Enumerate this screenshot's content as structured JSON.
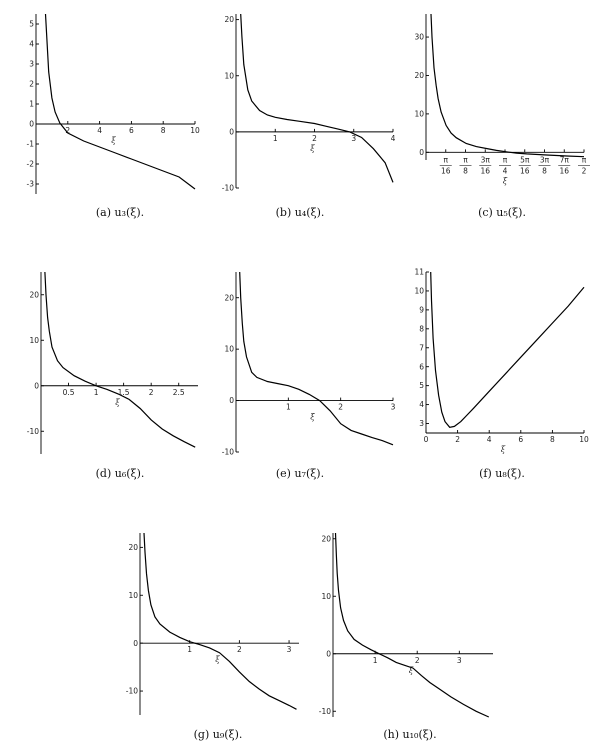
{
  "chart_data": [
    {
      "id": "a",
      "type": "line",
      "caption": "(a)  u₃(ξ).",
      "xlabel": "ξ",
      "ylabel": "",
      "xlim": [
        0,
        10
      ],
      "ylim": [
        -3.5,
        5.5
      ],
      "xticks": [
        {
          "v": 2,
          "l": "2"
        },
        {
          "v": 4,
          "l": "4"
        },
        {
          "v": 6,
          "l": "6"
        },
        {
          "v": 8,
          "l": "8"
        },
        {
          "v": 10,
          "l": "10"
        }
      ],
      "yticks": [
        {
          "v": -3,
          "l": "-3"
        },
        {
          "v": -2,
          "l": "-2"
        },
        {
          "v": -1,
          "l": "-1"
        },
        {
          "v": 0,
          "l": "0"
        },
        {
          "v": 1,
          "l": "1"
        },
        {
          "v": 2,
          "l": "2"
        },
        {
          "v": 3,
          "l": "3"
        },
        {
          "v": 4,
          "l": "4"
        },
        {
          "v": 5,
          "l": "5"
        }
      ],
      "series": [
        {
          "x": [
            0.6,
            0.8,
            1.0,
            1.2,
            1.5,
            2.0,
            3,
            4,
            5,
            6,
            7,
            8,
            9,
            10
          ],
          "y": [
            5.5,
            2.6,
            1.3,
            0.6,
            0.05,
            -0.45,
            -0.85,
            -1.15,
            -1.45,
            -1.75,
            -2.05,
            -2.35,
            -2.65,
            -3.25
          ]
        }
      ]
    },
    {
      "id": "b",
      "type": "line",
      "caption": "(b)  u₄(ξ).",
      "xlabel": "ξ",
      "ylabel": "",
      "xlim": [
        0,
        4
      ],
      "ylim": [
        -10,
        21
      ],
      "xticks": [
        {
          "v": 1,
          "l": "1"
        },
        {
          "v": 2,
          "l": "2"
        },
        {
          "v": 3,
          "l": "3"
        },
        {
          "v": 4,
          "l": "4"
        }
      ],
      "yticks": [
        {
          "v": -10,
          "l": "-10"
        },
        {
          "v": 0,
          "l": "0"
        },
        {
          "v": 10,
          "l": "10"
        },
        {
          "v": 20,
          "l": "20"
        }
      ],
      "series": [
        {
          "x": [
            0.12,
            0.15,
            0.2,
            0.3,
            0.4,
            0.6,
            0.8,
            1.0,
            1.3,
            1.6,
            2.0,
            2.3,
            2.6,
            2.9,
            3.2,
            3.5,
            3.8,
            4.0
          ],
          "y": [
            21,
            17,
            12,
            7.5,
            5.5,
            3.8,
            3.0,
            2.6,
            2.2,
            1.9,
            1.5,
            1.0,
            0.5,
            0.0,
            -1.0,
            -3.0,
            -5.5,
            -9.0
          ]
        }
      ]
    },
    {
      "id": "c",
      "type": "line",
      "caption": "(c)  u₅(ξ).",
      "xlabel": "ξ",
      "ylabel": "",
      "xlim": [
        0,
        1.5708
      ],
      "ylim": [
        -2,
        36
      ],
      "xtick_labels": [
        {
          "v": 0.19635,
          "n": "π",
          "d": "16"
        },
        {
          "v": 0.3927,
          "n": "π",
          "d": "8"
        },
        {
          "v": 0.58905,
          "n": "3π",
          "d": "16"
        },
        {
          "v": 0.7854,
          "n": "π",
          "d": "4"
        },
        {
          "v": 0.98175,
          "n": "5π",
          "d": "16"
        },
        {
          "v": 1.1781,
          "n": "3π",
          "d": "8"
        },
        {
          "v": 1.37445,
          "n": "7π",
          "d": "16"
        },
        {
          "v": 1.5708,
          "n": "π",
          "d": "2"
        }
      ],
      "yticks": [
        {
          "v": 0,
          "l": "0"
        },
        {
          "v": 10,
          "l": "10"
        },
        {
          "v": 20,
          "l": "20"
        },
        {
          "v": 30,
          "l": "30"
        }
      ],
      "series": [
        {
          "x": [
            0.05,
            0.06,
            0.08,
            0.1,
            0.12,
            0.15,
            0.2,
            0.25,
            0.3,
            0.4,
            0.5,
            0.6,
            0.7,
            0.8,
            0.9,
            1.0,
            1.2,
            1.4,
            1.5708
          ],
          "y": [
            36,
            30,
            22,
            17.5,
            14,
            10.5,
            7,
            5,
            3.8,
            2.3,
            1.5,
            1.0,
            0.5,
            0.1,
            -0.2,
            -0.4,
            -0.7,
            -0.95,
            -1.15
          ]
        }
      ]
    },
    {
      "id": "d",
      "type": "line",
      "caption": "(d)  u₆(ξ).",
      "xlabel": "ξ",
      "ylabel": "",
      "xlim": [
        0,
        2.85
      ],
      "ylim": [
        -15,
        25
      ],
      "xticks": [
        {
          "v": 0.5,
          "l": "0.5"
        },
        {
          "v": 1,
          "l": "1"
        },
        {
          "v": 1.5,
          "l": "1.5"
        },
        {
          "v": 2,
          "l": "2"
        },
        {
          "v": 2.5,
          "l": "2.5"
        }
      ],
      "yticks": [
        {
          "v": -10,
          "l": "-10"
        },
        {
          "v": 0,
          "l": "0"
        },
        {
          "v": 10,
          "l": "10"
        },
        {
          "v": 20,
          "l": "20"
        }
      ],
      "series": [
        {
          "x": [
            0.07,
            0.09,
            0.12,
            0.15,
            0.2,
            0.3,
            0.4,
            0.6,
            0.8,
            1.0,
            1.2,
            1.4,
            1.6,
            1.8,
            2.0,
            2.2,
            2.4,
            2.6,
            2.8
          ],
          "y": [
            25,
            20,
            15,
            12,
            8.5,
            5.5,
            4.0,
            2.2,
            1.0,
            0.0,
            -0.8,
            -1.8,
            -3.0,
            -5.0,
            -7.5,
            -9.5,
            -11,
            -12.3,
            -13.5
          ]
        }
      ]
    },
    {
      "id": "e",
      "type": "line",
      "caption": "(e)  u₇(ξ).",
      "xlabel": "ξ",
      "ylabel": "",
      "xlim": [
        0,
        3
      ],
      "ylim": [
        -10,
        25
      ],
      "xticks": [
        {
          "v": 1,
          "l": "1"
        },
        {
          "v": 2,
          "l": "2"
        },
        {
          "v": 3,
          "l": "3"
        }
      ],
      "yticks": [
        {
          "v": -10,
          "l": "-10"
        },
        {
          "v": 0,
          "l": "0"
        },
        {
          "v": 10,
          "l": "10"
        },
        {
          "v": 20,
          "l": "20"
        }
      ],
      "series": [
        {
          "x": [
            0.07,
            0.09,
            0.12,
            0.15,
            0.2,
            0.3,
            0.4,
            0.6,
            0.8,
            1.0,
            1.2,
            1.4,
            1.6,
            1.8,
            2.0,
            2.2,
            2.4,
            2.6,
            2.8,
            3.0
          ],
          "y": [
            25,
            20,
            15,
            11.5,
            8.5,
            5.5,
            4.5,
            3.7,
            3.3,
            2.9,
            2.2,
            1.2,
            0.0,
            -2.0,
            -4.5,
            -5.8,
            -6.5,
            -7.2,
            -7.8,
            -8.6
          ]
        }
      ]
    },
    {
      "id": "f",
      "type": "line",
      "caption": "(f)  u₈(ξ).",
      "xlabel": "ξ",
      "ylabel": "",
      "xlim": [
        0,
        10
      ],
      "ylim": [
        2.5,
        11
      ],
      "xticks": [
        {
          "v": 0,
          "l": "0"
        },
        {
          "v": 2,
          "l": "2"
        },
        {
          "v": 4,
          "l": "4"
        },
        {
          "v": 6,
          "l": "6"
        },
        {
          "v": 8,
          "l": "8"
        },
        {
          "v": 10,
          "l": "10"
        }
      ],
      "yticks": [
        {
          "v": 3,
          "l": "3"
        },
        {
          "v": 4,
          "l": "4"
        },
        {
          "v": 5,
          "l": "5"
        },
        {
          "v": 6,
          "l": "6"
        },
        {
          "v": 7,
          "l": "7"
        },
        {
          "v": 8,
          "l": "8"
        },
        {
          "v": 9,
          "l": "9"
        },
        {
          "v": 10,
          "l": "10"
        },
        {
          "v": 11,
          "l": "11"
        }
      ],
      "series": [
        {
          "x": [
            0.3,
            0.35,
            0.45,
            0.6,
            0.8,
            1.0,
            1.2,
            1.5,
            1.8,
            2.2,
            2.6,
            3,
            4,
            5,
            6,
            7,
            8,
            9,
            10
          ],
          "y": [
            11,
            9.5,
            7.5,
            5.8,
            4.5,
            3.6,
            3.1,
            2.8,
            2.85,
            3.1,
            3.45,
            3.8,
            4.7,
            5.6,
            6.5,
            7.4,
            8.3,
            9.2,
            10.2
          ]
        }
      ]
    },
    {
      "id": "g",
      "type": "line",
      "caption": "(g)  u₉(ξ).",
      "xlabel": "ξ",
      "ylabel": "",
      "xlim": [
        0,
        3.2
      ],
      "ylim": [
        -15,
        23
      ],
      "xticks": [
        {
          "v": 1,
          "l": "1"
        },
        {
          "v": 2,
          "l": "2"
        },
        {
          "v": 3,
          "l": "3"
        }
      ],
      "yticks": [
        {
          "v": -10,
          "l": "-10"
        },
        {
          "v": 0,
          "l": "0"
        },
        {
          "v": 10,
          "l": "10"
        },
        {
          "v": 20,
          "l": "20"
        }
      ],
      "series": [
        {
          "x": [
            0.08,
            0.1,
            0.13,
            0.17,
            0.22,
            0.3,
            0.4,
            0.6,
            0.8,
            1.0,
            1.2,
            1.4,
            1.6,
            1.8,
            2.0,
            2.2,
            2.4,
            2.6,
            2.8,
            3.0,
            3.15
          ],
          "y": [
            23,
            19,
            14.5,
            11,
            8,
            5.5,
            4.0,
            2.3,
            1.2,
            0.3,
            -0.3,
            -1.0,
            -2.0,
            -3.8,
            -6.0,
            -8.0,
            -9.6,
            -11,
            -12,
            -13,
            -13.8
          ]
        }
      ]
    },
    {
      "id": "h",
      "type": "line",
      "caption": "(h)  u₁₀(ξ).",
      "xlabel": "ξ",
      "ylabel": "",
      "xlim": [
        0,
        3.8
      ],
      "ylim": [
        -11,
        21
      ],
      "xticks": [
        {
          "v": 1,
          "l": "1"
        },
        {
          "v": 2,
          "l": "2"
        },
        {
          "v": 3,
          "l": "3"
        }
      ],
      "yticks": [
        {
          "v": -10,
          "l": "-10"
        },
        {
          "v": 0,
          "l": "0"
        },
        {
          "v": 10,
          "l": "10"
        },
        {
          "v": 20,
          "l": "20"
        }
      ],
      "series": [
        {
          "x": [
            0.06,
            0.08,
            0.1,
            0.13,
            0.18,
            0.25,
            0.35,
            0.5,
            0.7,
            0.9,
            1.1,
            1.3,
            1.5,
            1.7,
            1.9,
            2.1,
            2.3,
            2.5,
            2.8,
            3.1,
            3.4,
            3.7
          ],
          "y": [
            21,
            17,
            14,
            11,
            8,
            5.8,
            4.0,
            2.5,
            1.5,
            0.7,
            0.0,
            -0.7,
            -1.5,
            -2.0,
            -2.5,
            -3.8,
            -5.0,
            -6.0,
            -7.5,
            -8.8,
            -10,
            -11
          ]
        }
      ]
    }
  ]
}
